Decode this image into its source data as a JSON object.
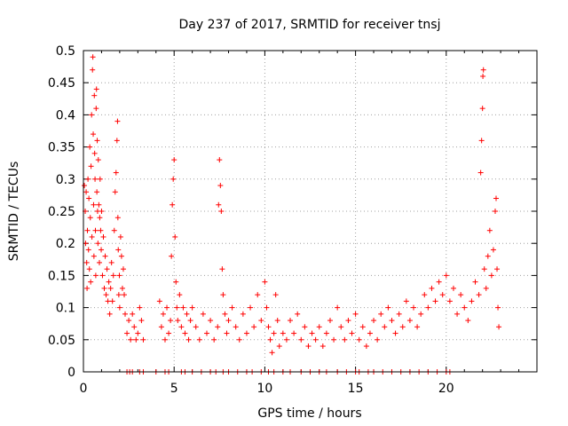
{
  "chart_data": {
    "type": "scatter",
    "title": "Day 237 of 2017, SRMTID for receiver tnsj",
    "xlabel": "GPS time / hours",
    "ylabel": "SRMTID / TECUs",
    "xlim": [
      0,
      25
    ],
    "ylim": [
      0,
      0.5
    ],
    "xticks": [
      0,
      5,
      10,
      15,
      20
    ],
    "xtick_labels": [
      "0",
      "5",
      "10",
      "15",
      "20"
    ],
    "yticks": [
      0,
      0.05,
      0.1,
      0.15,
      0.2,
      0.25,
      0.3,
      0.35,
      0.4,
      0.45,
      0.5
    ],
    "ytick_labels": [
      "0",
      "0.05",
      "0.1",
      "0.15",
      "0.2",
      "0.25",
      "0.3",
      "0.35",
      "0.4",
      "0.45",
      "0.5"
    ],
    "grid": true,
    "marker": "+",
    "color": "#ff0000",
    "series": [
      {
        "name": "SRMTID",
        "points": [
          [
            0.05,
            0.29
          ],
          [
            0.1,
            0.25
          ],
          [
            0.12,
            0.2
          ],
          [
            0.15,
            0.28
          ],
          [
            0.18,
            0.17
          ],
          [
            0.2,
            0.13
          ],
          [
            0.22,
            0.22
          ],
          [
            0.25,
            0.3
          ],
          [
            0.28,
            0.19
          ],
          [
            0.3,
            0.27
          ],
          [
            0.33,
            0.16
          ],
          [
            0.35,
            0.35
          ],
          [
            0.38,
            0.24
          ],
          [
            0.4,
            0.14
          ],
          [
            0.42,
            0.32
          ],
          [
            0.45,
            0.4
          ],
          [
            0.47,
            0.21
          ],
          [
            0.5,
            0.47
          ],
          [
            0.52,
            0.49
          ],
          [
            0.54,
            0.37
          ],
          [
            0.56,
            0.26
          ],
          [
            0.58,
            0.18
          ],
          [
            0.6,
            0.43
          ],
          [
            0.62,
            0.34
          ],
          [
            0.64,
            0.3
          ],
          [
            0.66,
            0.22
          ],
          [
            0.68,
            0.15
          ],
          [
            0.7,
            0.41
          ],
          [
            0.72,
            0.44
          ],
          [
            0.74,
            0.28
          ],
          [
            0.76,
            0.36
          ],
          [
            0.78,
            0.25
          ],
          [
            0.8,
            0.2
          ],
          [
            0.82,
            0.33
          ],
          [
            0.85,
            0.26
          ],
          [
            0.88,
            0.17
          ],
          [
            0.9,
            0.24
          ],
          [
            0.92,
            0.3
          ],
          [
            0.95,
            0.22
          ],
          [
            0.98,
            0.19
          ],
          [
            1.0,
            0.25
          ],
          [
            1.05,
            0.15
          ],
          [
            1.1,
            0.21
          ],
          [
            1.15,
            0.13
          ],
          [
            1.2,
            0.18
          ],
          [
            1.25,
            0.12
          ],
          [
            1.3,
            0.16
          ],
          [
            1.35,
            0.11
          ],
          [
            1.4,
            0.14
          ],
          [
            1.45,
            0.09
          ],
          [
            1.5,
            0.13
          ],
          [
            1.55,
            0.17
          ],
          [
            1.6,
            0.11
          ],
          [
            1.65,
            0.15
          ],
          [
            1.7,
            0.22
          ],
          [
            1.75,
            0.28
          ],
          [
            1.8,
            0.31
          ],
          [
            1.85,
            0.36
          ],
          [
            1.88,
            0.39
          ],
          [
            1.9,
            0.24
          ],
          [
            1.92,
            0.19
          ],
          [
            1.95,
            0.12
          ],
          [
            1.98,
            0.15
          ],
          [
            2.0,
            0.1
          ],
          [
            2.05,
            0.21
          ],
          [
            2.1,
            0.18
          ],
          [
            2.15,
            0.13
          ],
          [
            2.2,
            0.16
          ],
          [
            2.25,
            0.12
          ],
          [
            2.3,
            0.09
          ],
          [
            2.4,
            0.06
          ],
          [
            2.5,
            0.08
          ],
          [
            2.6,
            0.05
          ],
          [
            2.7,
            0.09
          ],
          [
            2.8,
            0.07
          ],
          [
            2.9,
            0.05
          ],
          [
            3.0,
            0.06
          ],
          [
            3.1,
            0.1
          ],
          [
            3.2,
            0.08
          ],
          [
            3.3,
            0.05
          ],
          [
            4.2,
            0.11
          ],
          [
            4.3,
            0.07
          ],
          [
            4.4,
            0.09
          ],
          [
            4.5,
            0.05
          ],
          [
            4.6,
            0.1
          ],
          [
            4.7,
            0.06
          ],
          [
            4.8,
            0.08
          ],
          [
            4.85,
            0.18
          ],
          [
            4.9,
            0.26
          ],
          [
            4.95,
            0.3
          ],
          [
            5.0,
            0.33
          ],
          [
            5.05,
            0.21
          ],
          [
            5.1,
            0.14
          ],
          [
            5.15,
            0.1
          ],
          [
            5.2,
            0.08
          ],
          [
            5.3,
            0.12
          ],
          [
            5.4,
            0.07
          ],
          [
            5.5,
            0.1
          ],
          [
            5.6,
            0.06
          ],
          [
            5.7,
            0.09
          ],
          [
            5.8,
            0.05
          ],
          [
            5.9,
            0.08
          ],
          [
            6.0,
            0.1
          ],
          [
            6.2,
            0.07
          ],
          [
            6.4,
            0.05
          ],
          [
            6.6,
            0.09
          ],
          [
            6.8,
            0.06
          ],
          [
            7.0,
            0.08
          ],
          [
            7.2,
            0.05
          ],
          [
            7.4,
            0.07
          ],
          [
            7.45,
            0.26
          ],
          [
            7.5,
            0.33
          ],
          [
            7.55,
            0.29
          ],
          [
            7.6,
            0.25
          ],
          [
            7.65,
            0.16
          ],
          [
            7.7,
            0.12
          ],
          [
            7.8,
            0.09
          ],
          [
            7.9,
            0.06
          ],
          [
            8.0,
            0.08
          ],
          [
            8.2,
            0.1
          ],
          [
            8.4,
            0.07
          ],
          [
            8.6,
            0.05
          ],
          [
            8.8,
            0.09
          ],
          [
            9.0,
            0.06
          ],
          [
            9.2,
            0.1
          ],
          [
            9.4,
            0.07
          ],
          [
            9.6,
            0.12
          ],
          [
            9.8,
            0.08
          ],
          [
            10.0,
            0.14
          ],
          [
            10.1,
            0.1
          ],
          [
            10.2,
            0.07
          ],
          [
            10.3,
            0.05
          ],
          [
            10.4,
            0.03
          ],
          [
            10.5,
            0.06
          ],
          [
            10.6,
            0.12
          ],
          [
            10.7,
            0.08
          ],
          [
            10.8,
            0.04
          ],
          [
            11.0,
            0.06
          ],
          [
            11.2,
            0.05
          ],
          [
            11.4,
            0.08
          ],
          [
            11.6,
            0.06
          ],
          [
            11.8,
            0.09
          ],
          [
            12.0,
            0.05
          ],
          [
            12.2,
            0.07
          ],
          [
            12.4,
            0.04
          ],
          [
            12.6,
            0.06
          ],
          [
            12.8,
            0.05
          ],
          [
            13.0,
            0.07
          ],
          [
            13.2,
            0.04
          ],
          [
            13.4,
            0.06
          ],
          [
            13.6,
            0.08
          ],
          [
            13.8,
            0.05
          ],
          [
            14.0,
            0.1
          ],
          [
            14.2,
            0.07
          ],
          [
            14.4,
            0.05
          ],
          [
            14.6,
            0.08
          ],
          [
            14.8,
            0.06
          ],
          [
            15.0,
            0.09
          ],
          [
            15.2,
            0.05
          ],
          [
            15.4,
            0.07
          ],
          [
            15.6,
            0.04
          ],
          [
            15.8,
            0.06
          ],
          [
            16.0,
            0.08
          ],
          [
            16.2,
            0.05
          ],
          [
            16.4,
            0.09
          ],
          [
            16.6,
            0.07
          ],
          [
            16.8,
            0.1
          ],
          [
            17.0,
            0.08
          ],
          [
            17.2,
            0.06
          ],
          [
            17.4,
            0.09
          ],
          [
            17.6,
            0.07
          ],
          [
            17.8,
            0.11
          ],
          [
            18.0,
            0.08
          ],
          [
            18.2,
            0.1
          ],
          [
            18.4,
            0.07
          ],
          [
            18.6,
            0.09
          ],
          [
            18.8,
            0.12
          ],
          [
            19.0,
            0.1
          ],
          [
            19.2,
            0.13
          ],
          [
            19.4,
            0.11
          ],
          [
            19.6,
            0.14
          ],
          [
            19.8,
            0.12
          ],
          [
            20.0,
            0.15
          ],
          [
            20.2,
            0.11
          ],
          [
            20.4,
            0.13
          ],
          [
            20.6,
            0.09
          ],
          [
            20.8,
            0.12
          ],
          [
            21.0,
            0.1
          ],
          [
            21.2,
            0.08
          ],
          [
            21.4,
            0.11
          ],
          [
            21.6,
            0.14
          ],
          [
            21.8,
            0.12
          ],
          [
            21.9,
            0.31
          ],
          [
            21.95,
            0.36
          ],
          [
            22.0,
            0.41
          ],
          [
            22.02,
            0.46
          ],
          [
            22.05,
            0.47
          ],
          [
            22.1,
            0.16
          ],
          [
            22.2,
            0.13
          ],
          [
            22.3,
            0.18
          ],
          [
            22.4,
            0.22
          ],
          [
            22.5,
            0.15
          ],
          [
            22.6,
            0.19
          ],
          [
            22.7,
            0.25
          ],
          [
            22.75,
            0.27
          ],
          [
            22.8,
            0.16
          ],
          [
            22.85,
            0.1
          ],
          [
            22.9,
            0.07
          ]
        ],
        "zero_points": [
          2.4,
          2.55,
          2.7,
          3.1,
          3.3,
          4.0,
          4.5,
          4.7,
          5.4,
          5.6,
          6.0,
          6.5,
          7.0,
          7.3,
          7.7,
          8.0,
          8.5,
          9.0,
          9.3,
          9.8,
          10.2,
          10.5,
          11.0,
          11.4,
          12.0,
          12.5,
          13.0,
          13.4,
          14.0,
          14.5,
          15.0,
          15.2,
          15.7,
          16.0,
          16.5,
          17.0,
          17.5,
          18.0,
          18.5,
          19.0,
          19.5,
          20.0,
          20.2
        ]
      }
    ]
  }
}
